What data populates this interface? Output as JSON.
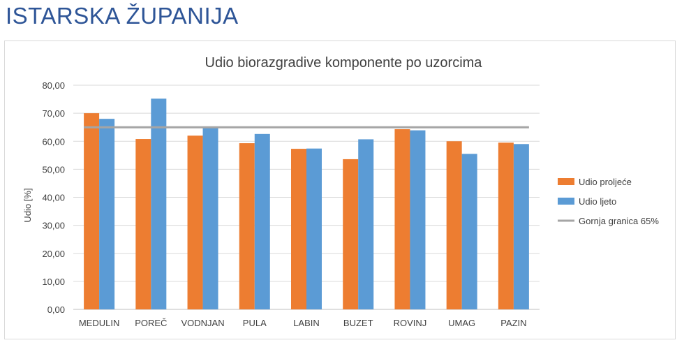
{
  "page": {
    "title": "ISTARSKA ŽUPANIJA"
  },
  "chart_data": {
    "type": "bar",
    "title": "Udio biorazgradive komponente po uzorcima",
    "xlabel": "",
    "ylabel": "Udio [%]",
    "ylim": [
      0,
      80
    ],
    "ytick_step": 10,
    "ytick_labels": [
      "0,00",
      "10,00",
      "20,00",
      "30,00",
      "40,00",
      "50,00",
      "60,00",
      "70,00",
      "80,00"
    ],
    "grid": true,
    "legend_position": "right",
    "categories": [
      "MEDULIN",
      "POREČ",
      "VODNJAN",
      "PULA",
      "LABIN",
      "BUZET",
      "ROVINJ",
      "UMAG",
      "PAZIN"
    ],
    "series": [
      {
        "name": "Udio proljeće",
        "type": "bar",
        "color": "#ed7d31",
        "values": [
          70.0,
          60.8,
          62.0,
          59.3,
          57.3,
          53.6,
          64.3,
          60.0,
          59.5
        ]
      },
      {
        "name": "Udio ljeto",
        "type": "bar",
        "color": "#5b9bd5",
        "values": [
          68.0,
          75.2,
          65.0,
          62.6,
          57.4,
          60.7,
          63.9,
          55.5,
          59.0
        ]
      },
      {
        "name": "Gornja granica 65%",
        "type": "line",
        "color": "#a5a5a5",
        "values": [
          65,
          65,
          65,
          65,
          65,
          65,
          65,
          65,
          65
        ]
      }
    ]
  }
}
